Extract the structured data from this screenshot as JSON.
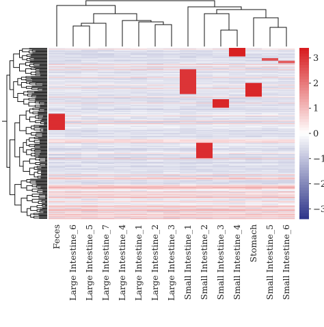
{
  "chart_data": {
    "type": "heatmap",
    "title": "",
    "xlabel": "",
    "ylabel": "",
    "columns": [
      "Feces",
      "Large Intestine_6",
      "Large Intestine_5",
      "Large Intestine_7",
      "Large Intestine_4",
      "Large Intestine_1",
      "Large Intestine_2",
      "Large Intestine_3",
      "Small Intestine_1",
      "Small Intestine_2",
      "Small Intestine_3",
      "Small Intestine_4",
      "Stomach",
      "Small Intestine_5",
      "Small Intestine_6"
    ],
    "color_scale": {
      "min": -3.4,
      "max": 3.4,
      "low_color": "#2c3489",
      "mid_color": "#ffffff",
      "high_color": "#d7191c",
      "ticks": [
        3,
        2,
        1,
        0,
        -1,
        -2,
        -3
      ],
      "tick_labels": [
        "3",
        "2",
        "1",
        "0",
        "−1",
        "−2",
        "−3"
      ]
    },
    "highlight_blocks": [
      {
        "column": "Feces",
        "row_start": 0.385,
        "row_end": 0.48,
        "value": 3.1
      },
      {
        "column": "Small Intestine_1",
        "row_start": 0.125,
        "row_end": 0.27,
        "value": 3.0
      },
      {
        "column": "Small Intestine_2",
        "row_start": 0.555,
        "row_end": 0.645,
        "value": 3.1
      },
      {
        "column": "Small Intestine_3",
        "row_start": 0.3,
        "row_end": 0.35,
        "value": 3.2
      },
      {
        "column": "Small Intestine_4",
        "row_start": 0.0,
        "row_end": 0.048,
        "value": 3.3
      },
      {
        "column": "Stomach",
        "row_start": 0.205,
        "row_end": 0.285,
        "value": 3.2
      },
      {
        "column": "Small Intestine_5",
        "row_start": 0.06,
        "row_end": 0.075,
        "value": 2.6
      },
      {
        "column": "Small Intestine_6",
        "row_start": 0.075,
        "row_end": 0.09,
        "value": 2.4
      }
    ]
  }
}
